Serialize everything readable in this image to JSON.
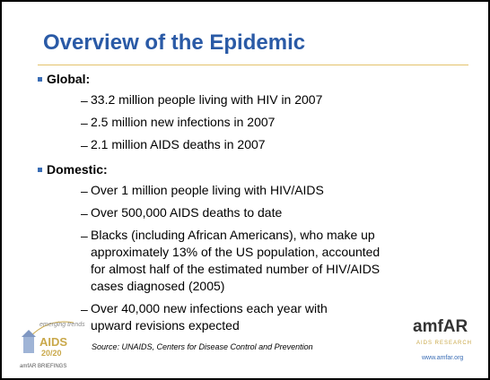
{
  "slide": {
    "title": "Overview of the Epidemic",
    "sections": [
      {
        "heading": "Global:",
        "items": [
          {
            "lines": [
              "33.2 million people living with HIV in 2007"
            ]
          },
          {
            "lines": [
              "2.5 million new infections in 2007"
            ]
          },
          {
            "lines": [
              "2.1 million AIDS deaths in 2007"
            ]
          }
        ]
      },
      {
        "heading": "Domestic:",
        "items": [
          {
            "lines": [
              "Over 1 million people living with HIV/AIDS"
            ]
          },
          {
            "lines": [
              "Over 500,000 AIDS deaths to date"
            ]
          },
          {
            "lines": [
              "Blacks (including African Americans), who make up",
              "approximately 13% of the US population, accounted",
              "for almost half of the estimated number of HIV/AIDS",
              "cases diagnosed (2005)"
            ]
          },
          {
            "lines": [
              "Over 40,000 new infections each year with",
              "upward revisions expected"
            ]
          }
        ]
      }
    ],
    "source": "Source: UNAIDS, Centers for Disease Control and Prevention",
    "left_logo": {
      "top": "emerging trends",
      "main": "AIDS",
      "sub": "20/20",
      "footer": "amfAR BRIEFINGS"
    },
    "right_logo": {
      "name": "amfAR",
      "tagline": "AIDS RESEARCH",
      "url": "www.amfar.org"
    }
  }
}
